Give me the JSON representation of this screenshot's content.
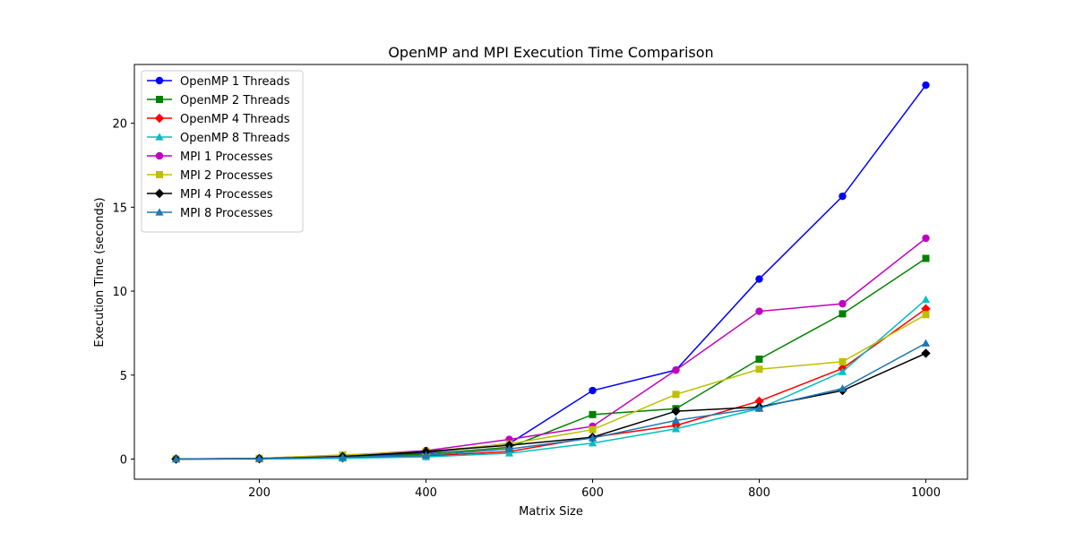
{
  "chart_data": {
    "type": "line",
    "title": "OpenMP and MPI Execution Time Comparison",
    "xlabel": "Matrix Size",
    "ylabel": "Execution Time (seconds)",
    "x": [
      100,
      200,
      300,
      400,
      500,
      600,
      700,
      800,
      900,
      1000
    ],
    "xlim": [
      50,
      1050
    ],
    "ylim": [
      -1.2,
      23.5
    ],
    "x_ticks": [
      200,
      400,
      600,
      800,
      1000
    ],
    "y_ticks": [
      0,
      5,
      10,
      15,
      20
    ],
    "x_tick_labels": [
      "200",
      "400",
      "600",
      "800",
      "1000"
    ],
    "y_tick_labels": [
      "0",
      "5",
      "10",
      "15",
      "20"
    ],
    "grid": false,
    "legend_position": "upper left",
    "series": [
      {
        "name": "OpenMP 1 Threads",
        "color": "#0000ff",
        "marker": "circle",
        "values": [
          0.0,
          0.03,
          0.12,
          0.38,
          0.92,
          4.08,
          5.3,
          10.72,
          15.65,
          22.27
        ]
      },
      {
        "name": "OpenMP 2 Threads",
        "color": "#008000",
        "marker": "square",
        "values": [
          0.0,
          0.02,
          0.1,
          0.3,
          0.7,
          2.65,
          3.0,
          5.95,
          8.65,
          11.95
        ]
      },
      {
        "name": "OpenMP 4 Threads",
        "color": "#ff0000",
        "marker": "diamond",
        "values": [
          0.0,
          0.01,
          0.06,
          0.18,
          0.45,
          1.3,
          2.0,
          3.45,
          5.4,
          8.95
        ]
      },
      {
        "name": "OpenMP 8 Threads",
        "color": "#00bfbf",
        "marker": "triangle",
        "values": [
          0.0,
          0.01,
          0.05,
          0.13,
          0.35,
          0.95,
          1.8,
          3.0,
          5.2,
          9.5
        ]
      },
      {
        "name": "MPI 1 Processes",
        "color": "#bf00bf",
        "marker": "circle",
        "values": [
          0.0,
          0.05,
          0.22,
          0.5,
          1.17,
          1.95,
          5.3,
          8.8,
          9.25,
          13.15
        ]
      },
      {
        "name": "MPI 2 Processes",
        "color": "#bfbf00",
        "marker": "square",
        "values": [
          0.0,
          0.04,
          0.25,
          0.45,
          0.9,
          1.75,
          3.85,
          5.35,
          5.8,
          8.6
        ]
      },
      {
        "name": "MPI 4 Processes",
        "color": "#000000",
        "marker": "diamond",
        "values": [
          0.0,
          0.03,
          0.15,
          0.45,
          0.82,
          1.3,
          2.85,
          3.1,
          4.08,
          6.3
        ]
      },
      {
        "name": "MPI 8 Processes",
        "color": "#1f77b4",
        "marker": "triangle",
        "values": [
          0.0,
          0.02,
          0.1,
          0.22,
          0.6,
          1.25,
          2.3,
          3.05,
          4.2,
          6.9
        ]
      }
    ]
  }
}
